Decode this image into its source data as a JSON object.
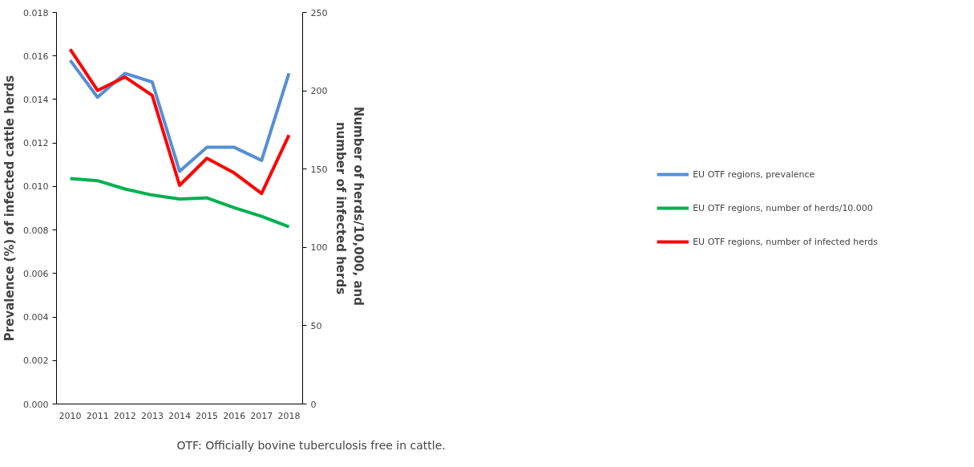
{
  "chart_data": {
    "type": "line",
    "categories": [
      "2010",
      "2011",
      "2012",
      "2013",
      "2014",
      "2015",
      "2016",
      "2017",
      "2018"
    ],
    "ylabel": "Prevalence (%) of infected cattle herds",
    "y2label": "Number of  herds/10,000, and\nnumber of infected herds",
    "ylim": [
      0,
      0.018
    ],
    "yticks": [
      {
        "value": 0,
        "label": "0.000"
      },
      {
        "value": 0.002,
        "label": "0.002"
      },
      {
        "value": 0.004,
        "label": "0.004"
      },
      {
        "value": 0.006,
        "label": "0.006"
      },
      {
        "value": 0.008,
        "label": "0.008"
      },
      {
        "value": 0.01,
        "label": "0.010"
      },
      {
        "value": 0.012,
        "label": "0.012"
      },
      {
        "value": 0.014,
        "label": "0.014"
      },
      {
        "value": 0.016,
        "label": "0.016"
      },
      {
        "value": 0.018,
        "label": "0.018"
      }
    ],
    "y2lim": [
      0,
      250
    ],
    "y2ticks": [
      0,
      50,
      100,
      150,
      200,
      250
    ],
    "series": [
      {
        "name": "EU OTF regions, prevalence",
        "color": "#558ed5",
        "values": [
          0.0158,
          0.0141,
          0.0152,
          0.0148,
          0.0107,
          0.0118,
          0.0118,
          0.0112,
          0.0152
        ]
      },
      {
        "name": "EU OTF regions, number of herds/10.000",
        "color": "#00b050",
        "axis": "y2",
        "values": [
          144,
          142.6,
          137.3,
          133.4,
          130.9,
          131.6,
          125.3,
          119.8,
          113.2
        ]
      },
      {
        "name": "EU OTF regions, number of infected herds",
        "color": "#ff0000",
        "axis": "y2",
        "values": [
          226.5,
          200.2,
          208.8,
          197,
          139.6,
          156.9,
          147.5,
          134.4,
          171.7
        ]
      }
    ],
    "legend": "right",
    "grid": false,
    "annotations": [
      "OTF: Officially bovine tuberculosis free in cattle."
    ]
  }
}
